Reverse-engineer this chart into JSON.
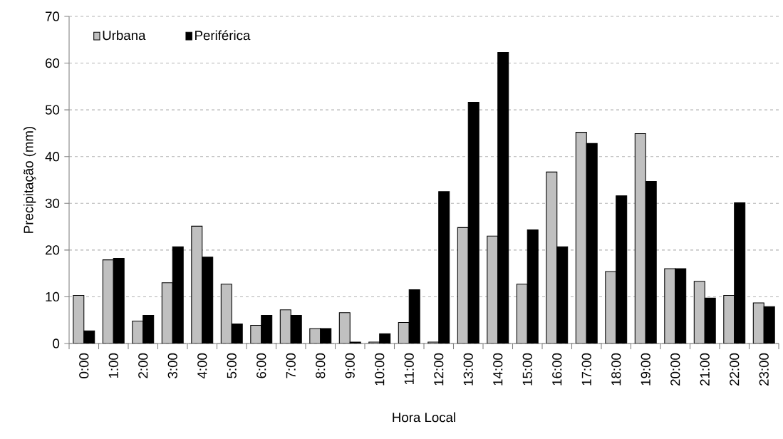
{
  "chart_data": {
    "type": "bar",
    "xlabel": "Hora Local",
    "ylabel": "Precipitação (mm)",
    "categories": [
      "0:00",
      "1:00",
      "2:00",
      "3:00",
      "4:00",
      "5:00",
      "6:00",
      "7:00",
      "8:00",
      "9:00",
      "10:00",
      "11:00",
      "12:00",
      "13:00",
      "14:00",
      "15:00",
      "16:00",
      "17:00",
      "18:00",
      "19:00",
      "20:00",
      "21:00",
      "22:00",
      "23:00"
    ],
    "series": [
      {
        "name": "Urbana",
        "color": "#c0c0c0",
        "values": [
          10.3,
          17.9,
          4.8,
          13.0,
          25.1,
          12.7,
          3.9,
          7.2,
          3.2,
          6.6,
          0.3,
          4.5,
          0.3,
          24.8,
          23.0,
          12.7,
          36.7,
          45.2,
          15.4,
          44.9,
          16.0,
          13.3,
          10.3,
          8.7
        ]
      },
      {
        "name": "Periférica",
        "color": "#000000",
        "values": [
          2.7,
          18.2,
          6.0,
          20.7,
          18.5,
          4.2,
          6.0,
          6.0,
          3.2,
          0.3,
          2.1,
          11.5,
          32.5,
          51.6,
          62.3,
          24.3,
          20.7,
          42.8,
          31.6,
          34.7,
          16.0,
          9.7,
          30.1,
          7.9
        ]
      }
    ],
    "ylim": [
      0,
      70
    ],
    "yticks": [
      0,
      10,
      20,
      30,
      40,
      50,
      60,
      70
    ],
    "grid": "y",
    "legend": "top left"
  }
}
